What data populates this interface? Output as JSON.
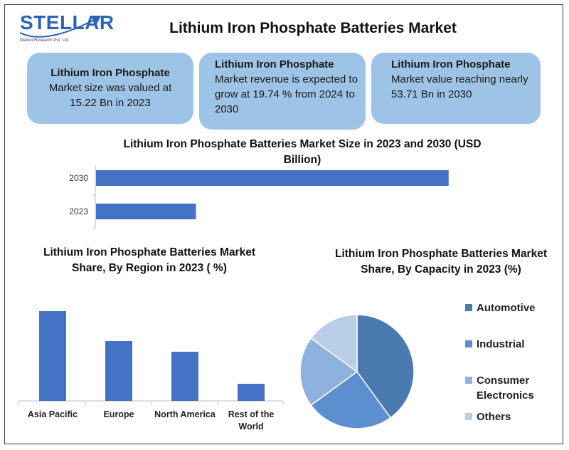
{
  "header": {
    "logo_text": "STELLAR",
    "logo_sub": "Market Research Pvt. Ltd.",
    "title": "Lithium Iron Phosphate Batteries Market"
  },
  "cards": [
    {
      "title": "Lithium Iron Phosphate",
      "body": "Market size was valued at 15.22 Bn in 2023"
    },
    {
      "title": "Lithium Iron Phosphate",
      "body": "Market revenue is expected to grow at 19.74 % from 2024 to 2030"
    },
    {
      "title": "Lithium Iron Phosphate",
      "body": "Market value reaching nearly 53.71 Bn in 2030"
    }
  ],
  "colors": {
    "bar": "#4472c4",
    "card": "#9dc3e6",
    "pie": [
      "#4a7bb0",
      "#5b8fd0",
      "#8fb1de",
      "#b9cde9"
    ]
  },
  "chart_data": [
    {
      "type": "bar",
      "orientation": "horizontal",
      "title": "Lithium Iron Phosphate Batteries Market Size in 2023 and 2030 (USD Billion)",
      "categories": [
        "2030",
        "2023"
      ],
      "values": [
        53.71,
        15.22
      ],
      "xlim": [
        0,
        60
      ],
      "grid": false
    },
    {
      "type": "bar",
      "title": "Lithium Iron Phosphate Batteries Market Share, By Region in 2023 ( %)",
      "categories": [
        "Asia Pacific",
        "Europe",
        "North America",
        "Rest of the World"
      ],
      "values": [
        42,
        28,
        23,
        8
      ],
      "ylim": [
        0,
        45
      ],
      "grid": false
    },
    {
      "type": "pie",
      "title": "Lithium Iron Phosphate Batteries Market Share, By Capacity in 2023 (%)",
      "labels": [
        "Automotive",
        "Industrial",
        "Consumer Electronics",
        "Others"
      ],
      "values": [
        40,
        25,
        20,
        15
      ],
      "legend": "right"
    }
  ]
}
